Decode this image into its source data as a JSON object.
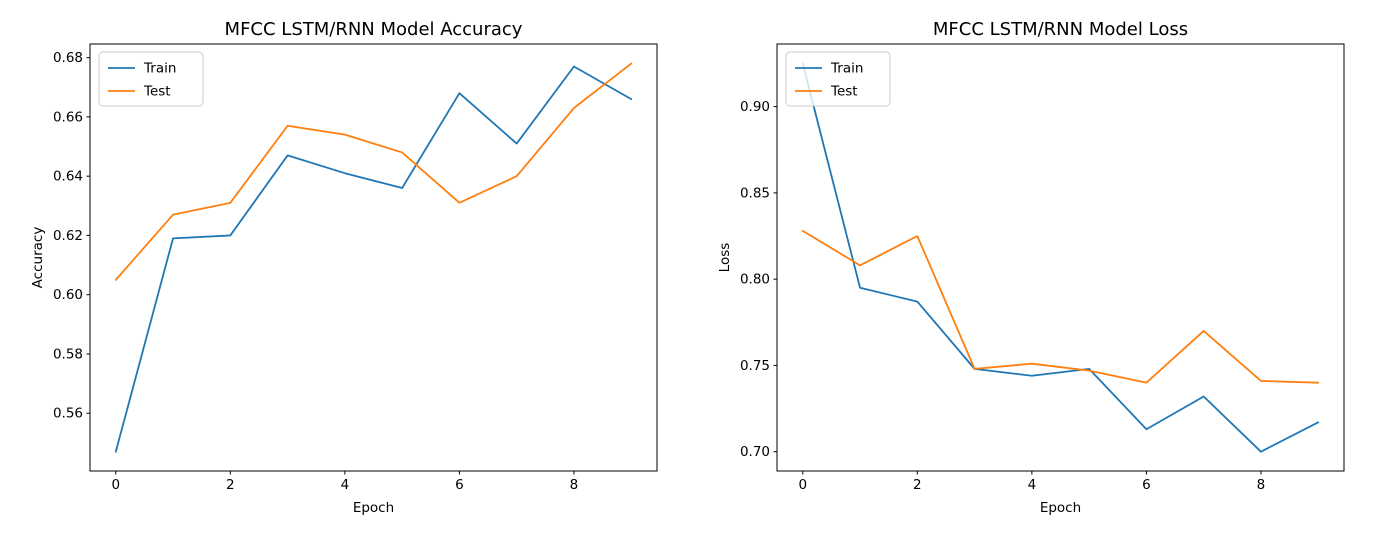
{
  "figure": {
    "background": "#ffffff",
    "accent_colors": {
      "train": "#1f77b4",
      "test": "#ff7f0e"
    }
  },
  "chart_data": [
    {
      "type": "line",
      "title": "MFCC LSTM/RNN Model Accuracy",
      "xlabel": "Epoch",
      "ylabel": "Accuracy",
      "x": [
        0,
        1,
        2,
        3,
        4,
        5,
        6,
        7,
        8,
        9
      ],
      "series": [
        {
          "name": "Train",
          "color": "#1f77b4",
          "values": [
            0.547,
            0.619,
            0.62,
            0.647,
            0.641,
            0.636,
            0.668,
            0.651,
            0.677,
            0.666
          ]
        },
        {
          "name": "Test",
          "color": "#ff7f0e",
          "values": [
            0.605,
            0.627,
            0.631,
            0.657,
            0.654,
            0.648,
            0.631,
            0.64,
            0.663,
            0.678
          ]
        }
      ],
      "xlim": [
        -0.45,
        9.45
      ],
      "ylim": [
        0.5405,
        0.6846
      ],
      "xticks": [
        0,
        2,
        4,
        6,
        8
      ],
      "yticks": [
        0.56,
        0.58,
        0.6,
        0.62,
        0.64,
        0.66,
        0.68
      ],
      "ytick_decimals": 2,
      "grid": false,
      "legend": {
        "position": "upper left",
        "labels": [
          "Train",
          "Test"
        ]
      }
    },
    {
      "type": "line",
      "title": "MFCC LSTM/RNN Model Loss",
      "xlabel": "Epoch",
      "ylabel": "Loss",
      "x": [
        0,
        1,
        2,
        3,
        4,
        5,
        6,
        7,
        8,
        9
      ],
      "series": [
        {
          "name": "Train",
          "color": "#1f77b4",
          "values": [
            0.925,
            0.795,
            0.787,
            0.748,
            0.744,
            0.748,
            0.713,
            0.732,
            0.7,
            0.717
          ]
        },
        {
          "name": "Test",
          "color": "#ff7f0e",
          "values": [
            0.828,
            0.808,
            0.825,
            0.748,
            0.751,
            0.747,
            0.74,
            0.77,
            0.741,
            0.74
          ]
        }
      ],
      "xlim": [
        -0.45,
        9.45
      ],
      "ylim": [
        0.6888,
        0.9363
      ],
      "xticks": [
        0,
        2,
        4,
        6,
        8
      ],
      "yticks": [
        0.7,
        0.75,
        0.8,
        0.85,
        0.9
      ],
      "ytick_decimals": 2,
      "grid": false,
      "legend": {
        "position": "upper left",
        "labels": [
          "Train",
          "Test"
        ]
      }
    }
  ]
}
